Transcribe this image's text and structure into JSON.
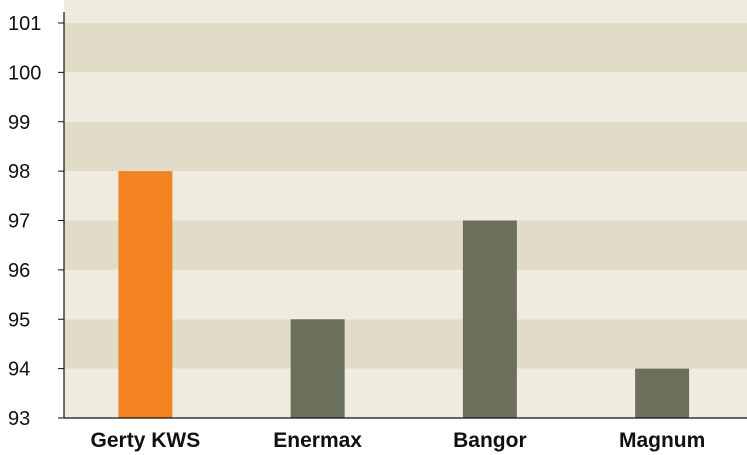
{
  "chart_data": {
    "type": "bar",
    "categories": [
      "Gerty KWS",
      "Enermax",
      "Bangor",
      "Magnum"
    ],
    "values": [
      98,
      95,
      97,
      94
    ],
    "ylim": [
      93,
      101
    ],
    "yticks": [
      93,
      94,
      95,
      96,
      97,
      98,
      99,
      100,
      101
    ],
    "title": "",
    "xlabel": "",
    "ylabel": "",
    "grid": "horizontal bands",
    "legend": "none"
  },
  "colors": {
    "band_dark": "#e0dcc7",
    "band_light": "#eeebdf",
    "axis": "#111111",
    "bar_highlight": "#f58220",
    "bar_default": "#6b705c"
  },
  "highlight_index": 0
}
